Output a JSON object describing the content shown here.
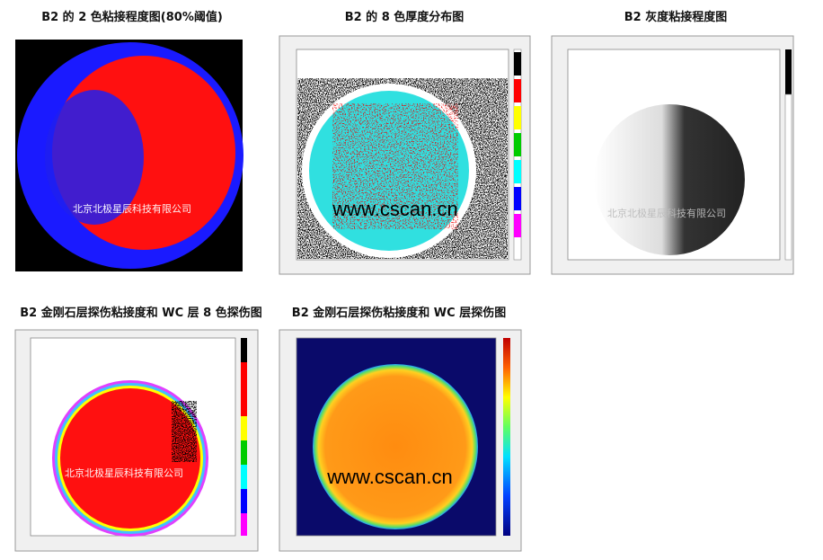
{
  "panels": [
    {
      "title": "B2 的 2 色粘接程度图(80%阈值)",
      "watermark": "北京北极星辰科技有限公司"
    },
    {
      "title": "B2 的 8 色厚度分布图",
      "watermark": "www.cscan.cn"
    },
    {
      "title": "B2 灰度粘接程度图",
      "watermark": "北京北极星辰科技有限公司"
    },
    {
      "title": "B2 金刚石层探伤粘接度和 WC 层 8 色探伤图",
      "watermark": "北京北极星辰科技有限公司"
    },
    {
      "title": "B2 金刚石层探伤粘接度和 WC 层探伤图",
      "watermark": "www.cscan.cn"
    }
  ]
}
